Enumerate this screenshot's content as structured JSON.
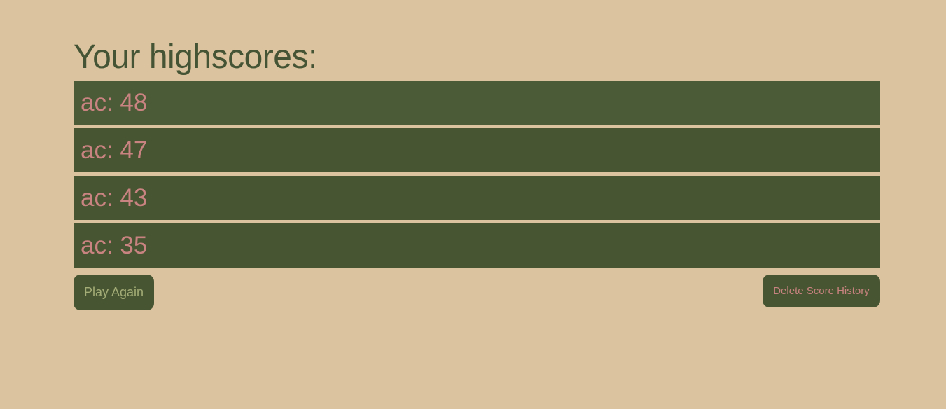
{
  "page": {
    "title": "Your highscores:"
  },
  "scores": [
    {
      "text": "ac: 48"
    },
    {
      "text": "ac: 47"
    },
    {
      "text": "ac: 43"
    },
    {
      "text": "ac: 35"
    }
  ],
  "buttons": {
    "play_again": "Play Again",
    "delete_history": "Delete Score History"
  },
  "colors": {
    "background": "#dbc39f",
    "title": "#445434",
    "row_background": "#475532",
    "score_text": "#c98380",
    "play_button_text": "#a3ac76"
  }
}
